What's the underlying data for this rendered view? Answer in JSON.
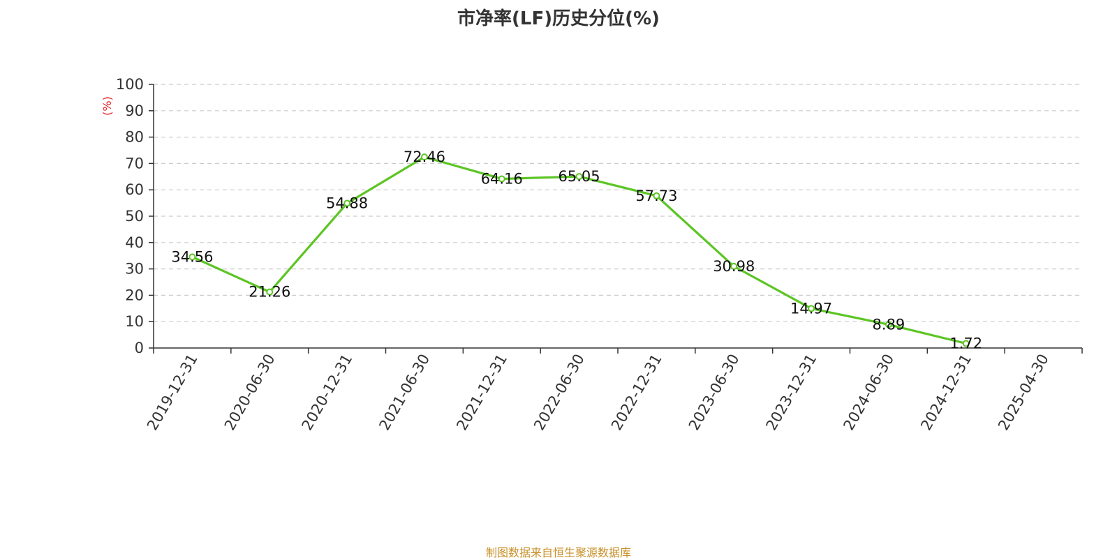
{
  "chart_data": {
    "type": "line",
    "title": "市净率(LF)历史分位(%)",
    "ylabel": "(%)",
    "xlabel": "",
    "categories": [
      "2019-12-31",
      "2020-06-30",
      "2020-12-31",
      "2021-06-30",
      "2021-12-31",
      "2022-06-30",
      "2022-12-31",
      "2023-06-30",
      "2023-12-31",
      "2024-06-30",
      "2024-12-31",
      "2025-04-30"
    ],
    "series": [
      {
        "values": [
          34.56,
          21.26,
          54.88,
          72.46,
          64.16,
          65.05,
          57.73,
          30.98,
          14.97,
          8.89,
          1.72,
          null
        ]
      }
    ],
    "data_labels": [
      "34.56",
      "21.26",
      "54.88",
      "72.46",
      "64.16",
      "65.05",
      "57.73",
      "30.98",
      "14.97",
      "8.89",
      "1.72"
    ],
    "ylim": [
      0,
      100
    ],
    "yticks": [
      "0",
      "10",
      "20",
      "30",
      "40",
      "50",
      "60",
      "70",
      "80",
      "90",
      "100"
    ],
    "grid": true,
    "line_color": "#5cc524",
    "unit_color": "#e02020"
  },
  "source": {
    "text": "制图数据来自恒生聚源数据库",
    "color": "#c8902a"
  }
}
